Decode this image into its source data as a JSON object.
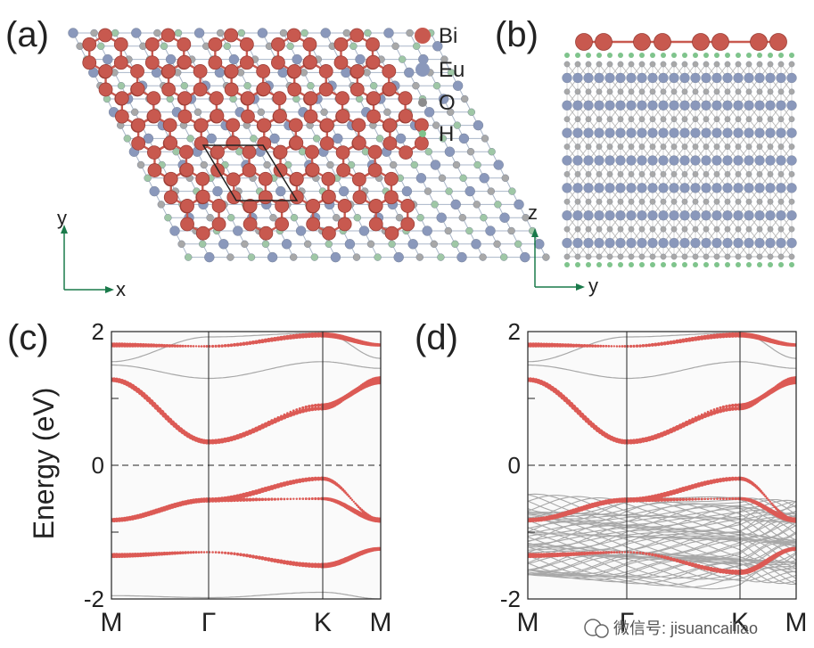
{
  "panels": {
    "a": "(a)",
    "b": "(b)",
    "c": "(c)",
    "d": "(d)"
  },
  "legend": [
    {
      "label": "Bi",
      "color": "#c8594f"
    },
    {
      "label": "Eu",
      "color": "#8a98bb"
    },
    {
      "label": "O",
      "color": "#8c8c8c"
    },
    {
      "label": "H",
      "color": "#7fc48c"
    }
  ],
  "axes_a": {
    "x": "x",
    "y": "y"
  },
  "axes_b": {
    "x": "y",
    "y": "z"
  },
  "colors": {
    "bi": "#c8594f",
    "bond": "#c8594f",
    "eu": "#8a98bb",
    "o": "#a8a8a8",
    "h": "#7fc48c",
    "lattice": "#a9b6c8",
    "grey_band": "#a8a8a8",
    "red_band": "#dc5a55",
    "axis_arrow": "#1a7a4a"
  },
  "watermark": "微信号: jisuancailiao",
  "chart_data": [
    {
      "type": "line",
      "panel": "(c)",
      "ylabel": "Energy (eV)",
      "ylim": [
        -2,
        2
      ],
      "y_ticks": [
        "2",
        "0",
        "-2"
      ],
      "x_ticks": [
        "M",
        "Γ",
        "K",
        "M"
      ],
      "fermi_level": 0,
      "grey_bands": [
        {
          "x": [
            0,
            1,
            2,
            3
          ],
          "y": [
            1.55,
            1.92,
            1.98,
            1.6
          ]
        },
        {
          "x": [
            0,
            1,
            2,
            3
          ],
          "y": [
            1.5,
            1.3,
            1.55,
            1.45
          ]
        },
        {
          "x": [
            0,
            1,
            2,
            3
          ],
          "y": [
            -1.95,
            -1.98,
            -1.9,
            -2.0
          ]
        }
      ],
      "series": [
        {
          "x": [
            0,
            1,
            2,
            3
          ],
          "y": [
            1.3,
            0.35,
            0.85,
            1.3
          ]
        },
        {
          "x": [
            0,
            1,
            2,
            3
          ],
          "y": [
            1.28,
            0.35,
            0.9,
            1.25
          ]
        },
        {
          "x": [
            0,
            1,
            2,
            3
          ],
          "y": [
            1.8,
            1.78,
            1.95,
            1.8
          ]
        },
        {
          "x": [
            0,
            1,
            2,
            3
          ],
          "y": [
            -0.82,
            -0.52,
            -0.2,
            -0.82
          ]
        },
        {
          "x": [
            0,
            1,
            2,
            3
          ],
          "y": [
            -0.82,
            -0.52,
            -0.5,
            -0.82
          ]
        },
        {
          "x": [
            0,
            1,
            2,
            3
          ],
          "y": [
            -1.35,
            -1.3,
            -1.5,
            -1.25
          ]
        }
      ]
    },
    {
      "type": "line",
      "panel": "(d)",
      "ylim": [
        -2,
        2
      ],
      "y_ticks": [
        "2",
        "0",
        "-2"
      ],
      "x_ticks": [
        "M",
        "Γ",
        "K",
        "M"
      ],
      "fermi_level": 0,
      "grey_continuum": [
        -1.7,
        -0.55
      ],
      "grey_bands": [
        {
          "x": [
            0,
            1,
            2,
            3
          ],
          "y": [
            1.55,
            1.92,
            1.98,
            1.6
          ]
        },
        {
          "x": [
            0,
            1,
            2,
            3
          ],
          "y": [
            1.5,
            1.3,
            1.55,
            1.45
          ]
        }
      ],
      "series": [
        {
          "x": [
            0,
            1,
            2,
            3
          ],
          "y": [
            1.3,
            0.35,
            0.85,
            1.3
          ]
        },
        {
          "x": [
            0,
            1,
            2,
            3
          ],
          "y": [
            1.28,
            0.35,
            0.9,
            1.25
          ]
        },
        {
          "x": [
            0,
            1,
            2,
            3
          ],
          "y": [
            1.8,
            1.78,
            1.95,
            1.8
          ]
        },
        {
          "x": [
            0,
            1,
            2,
            3
          ],
          "y": [
            -0.82,
            -0.52,
            -0.2,
            -0.82
          ]
        },
        {
          "x": [
            0,
            1,
            2,
            3
          ],
          "y": [
            -0.82,
            -0.52,
            -0.5,
            -0.82
          ]
        },
        {
          "x": [
            0,
            1,
            2,
            3
          ],
          "y": [
            -1.35,
            -1.3,
            -1.6,
            -1.25
          ]
        }
      ]
    }
  ]
}
